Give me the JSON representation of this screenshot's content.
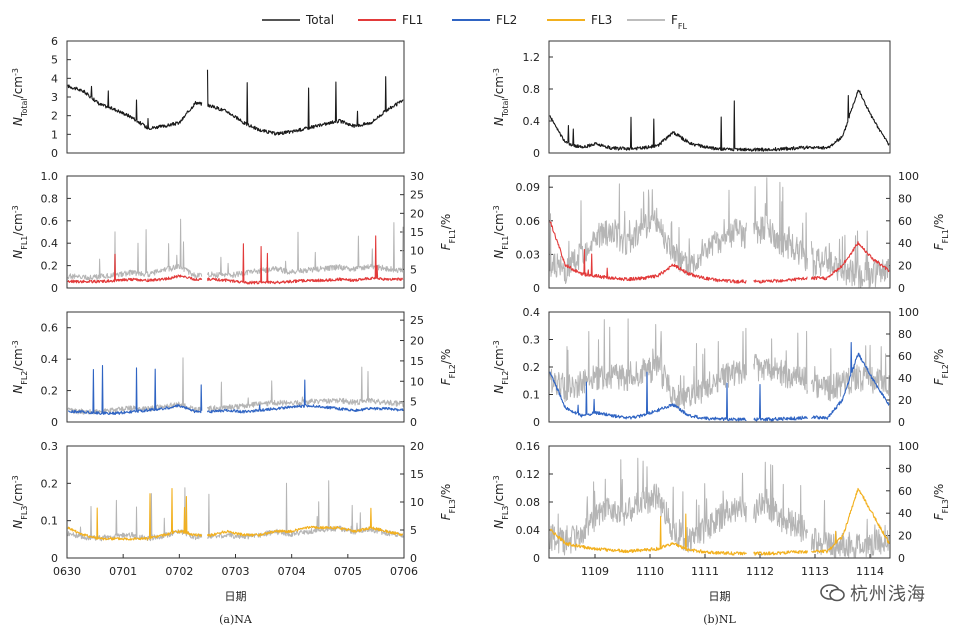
{
  "chart_data": {
    "type": "line",
    "legend": {
      "placement": "top-center",
      "items": [
        {
          "name": "Total",
          "color": "#555555"
        },
        {
          "name": "FL1",
          "color": "#e23a3a"
        },
        {
          "name": "FL2",
          "color": "#2f64c3"
        },
        {
          "name": "FL3",
          "color": "#f2b01e"
        },
        {
          "name": "F",
          "sub": "FL",
          "color": "#bdbdbd"
        }
      ]
    },
    "units": "/cm",
    "unit_exp": "-3",
    "ff_unit": "/%",
    "xlabel": "日期",
    "columns": [
      {
        "caption": "(a)NA",
        "x_ticks": [
          "0630",
          "0701",
          "0702",
          "0703",
          "0704",
          "0705",
          "0706"
        ],
        "panels": [
          {
            "ylabel_main": "N",
            "ylabel_sub": "Total",
            "ylim": [
              0,
              6
            ],
            "yticks": [
              "0",
              "1",
              "2",
              "3",
              "4",
              "5",
              "6"
            ],
            "series": [
              {
                "name": "Total",
                "color": "#1a1a1a",
                "values": [
                  3.6,
                  3.3,
                  2.6,
                  2.3,
                  1.9,
                  1.3,
                  1.4,
                  1.6,
                  2.7,
                  2.5,
                  2.2,
                  1.6,
                  1.2,
                  1.0,
                  1.1,
                  1.3,
                  1.5,
                  1.7,
                  1.4,
                  1.6,
                  2.3,
                  2.8
                ]
              }
            ]
          },
          {
            "ylabel_main": "N",
            "ylabel_sub": "FL1",
            "ylim": [
              0,
              1.0
            ],
            "yticks": [
              "0",
              "0.2",
              "0.4",
              "0.6",
              "0.8",
              "1.0"
            ],
            "ff_ylabel_main": "F",
            "ff_ylabel_sub": "FL1",
            "ff_ylim": [
              0,
              30
            ],
            "ff_yticks": [
              "0",
              "5",
              "10",
              "15",
              "20",
              "25",
              "30"
            ],
            "series": [
              {
                "name": "FFL",
                "color": "#b5b5b5",
                "values": [
                  3.0,
                  2.5,
                  2.8,
                  3.2,
                  4.0,
                  3.4,
                  4.6,
                  5.6,
                  3.0,
                  3.4,
                  3.0,
                  3.8,
                  4.4,
                  5.0,
                  4.0,
                  4.6,
                  5.0,
                  5.4,
                  4.8,
                  5.6,
                  5.0,
                  4.4
                ]
              },
              {
                "name": "FL1",
                "color": "#e23a3a",
                "values": [
                  0.05,
                  0.05,
                  0.05,
                  0.06,
                  0.07,
                  0.06,
                  0.07,
                  0.1,
                  0.07,
                  0.07,
                  0.06,
                  0.04,
                  0.04,
                  0.04,
                  0.05,
                  0.06,
                  0.06,
                  0.07,
                  0.06,
                  0.08,
                  0.07,
                  0.07
                ]
              }
            ]
          },
          {
            "ylabel_main": "N",
            "ylabel_sub": "FL2",
            "ylim": [
              0,
              0.7
            ],
            "yticks": [
              "0",
              "0.2",
              "0.4",
              "0.6"
            ],
            "ff_ylabel_main": "F",
            "ff_ylabel_sub": "FL2",
            "ff_ylim": [
              0,
              27
            ],
            "ff_yticks": [
              "0",
              "5",
              "10",
              "15",
              "20",
              "25"
            ],
            "series": [
              {
                "name": "FFL",
                "color": "#b5b5b5",
                "values": [
                  2.6,
                  2.3,
                  2.4,
                  2.8,
                  3.2,
                  3.0,
                  3.6,
                  4.2,
                  2.8,
                  3.2,
                  3.4,
                  3.8,
                  4.2,
                  4.6,
                  4.4,
                  4.8,
                  5.0,
                  5.2,
                  4.6,
                  5.0,
                  4.6,
                  4.2
                ]
              },
              {
                "name": "FL2",
                "color": "#2f64c3",
                "values": [
                  0.06,
                  0.06,
                  0.05,
                  0.05,
                  0.06,
                  0.07,
                  0.08,
                  0.1,
                  0.06,
                  0.06,
                  0.07,
                  0.06,
                  0.07,
                  0.08,
                  0.09,
                  0.1,
                  0.09,
                  0.08,
                  0.07,
                  0.08,
                  0.08,
                  0.07
                ]
              }
            ]
          },
          {
            "ylabel_main": "N",
            "ylabel_sub": "FL3",
            "ylim": [
              0,
              0.3
            ],
            "yticks": [
              "0",
              "0.1",
              "0.2",
              "0.3"
            ],
            "ff_ylabel_main": "F",
            "ff_ylabel_sub": "FL3",
            "ff_ylim": [
              0,
              20
            ],
            "ff_yticks": [
              "0",
              "5",
              "10",
              "15",
              "20"
            ],
            "series": [
              {
                "name": "FFL",
                "color": "#b5b5b5",
                "values": [
                  4.2,
                  3.6,
                  3.4,
                  3.8,
                  4.0,
                  3.4,
                  3.8,
                  4.8,
                  3.6,
                  3.8,
                  4.0,
                  3.6,
                  4.0,
                  4.6,
                  4.2,
                  4.6,
                  5.0,
                  5.2,
                  4.6,
                  5.0,
                  4.4,
                  4.0
                ]
              },
              {
                "name": "FL3",
                "color": "#f2b01e",
                "values": [
                  0.08,
                  0.06,
                  0.05,
                  0.05,
                  0.05,
                  0.05,
                  0.06,
                  0.07,
                  0.06,
                  0.06,
                  0.07,
                  0.06,
                  0.06,
                  0.07,
                  0.07,
                  0.08,
                  0.08,
                  0.08,
                  0.07,
                  0.08,
                  0.07,
                  0.06
                ]
              }
            ]
          }
        ]
      },
      {
        "caption": "(b)NL",
        "x_ticks": [
          "1109",
          "1110",
          "1111",
          "1112",
          "1113",
          "1114"
        ],
        "panels": [
          {
            "ylabel_main": "N",
            "ylabel_sub": "Total",
            "ylim": [
              0,
              1.4
            ],
            "yticks": [
              "0",
              "0.4",
              "0.8",
              "1.2"
            ],
            "series": [
              {
                "name": "Total",
                "color": "#1a1a1a",
                "values": [
                  0.45,
                  0.12,
                  0.06,
                  0.1,
                  0.05,
                  0.04,
                  0.05,
                  0.08,
                  0.25,
                  0.12,
                  0.06,
                  0.04,
                  0.03,
                  0.03,
                  0.03,
                  0.04,
                  0.05,
                  0.06,
                  0.05,
                  0.2,
                  0.8,
                  0.4,
                  0.1
                ]
              }
            ]
          },
          {
            "ylabel_main": "N",
            "ylabel_sub": "FL1",
            "ylim": [
              0,
              0.1
            ],
            "yticks": [
              "0",
              "0.03",
              "0.06",
              "0.09"
            ],
            "ff_ylabel_main": "F",
            "ff_ylabel_sub": "FL1",
            "ff_ylim": [
              0,
              100
            ],
            "ff_yticks": [
              "0",
              "20",
              "40",
              "60",
              "80",
              "100"
            ],
            "series": [
              {
                "name": "FFL",
                "color": "#b5b5b5",
                "values": [
                  20,
                  15,
                  30,
                  45,
                  50,
                  40,
                  55,
                  60,
                  30,
                  20,
                  35,
                  40,
                  50,
                  45,
                  55,
                  40,
                  35,
                  20,
                  25,
                  15,
                  10,
                  12,
                  15
                ]
              },
              {
                "name": "FL1",
                "color": "#e23a3a",
                "values": [
                  0.06,
                  0.02,
                  0.012,
                  0.01,
                  0.008,
                  0.007,
                  0.008,
                  0.01,
                  0.02,
                  0.012,
                  0.008,
                  0.006,
                  0.005,
                  0.005,
                  0.005,
                  0.006,
                  0.007,
                  0.008,
                  0.008,
                  0.02,
                  0.04,
                  0.025,
                  0.015
                ]
              }
            ]
          },
          {
            "ylabel_main": "N",
            "ylabel_sub": "FL2",
            "ylim": [
              0,
              0.4
            ],
            "yticks": [
              "0",
              "0.1",
              "0.2",
              "0.3",
              "0.4"
            ],
            "ff_ylabel_main": "F",
            "ff_ylabel_sub": "FL2",
            "ff_ylim": [
              0,
              100
            ],
            "ff_yticks": [
              "0",
              "20",
              "40",
              "60",
              "80",
              "100"
            ],
            "series": [
              {
                "name": "FFL",
                "color": "#b5b5b5",
                "values": [
                  40,
                  30,
                  35,
                  40,
                  42,
                  40,
                  45,
                  50,
                  25,
                  20,
                  30,
                  40,
                  45,
                  50,
                  48,
                  45,
                  40,
                  35,
                  30,
                  35,
                  40,
                  38,
                  35
                ]
              },
              {
                "name": "FL2",
                "color": "#2f64c3",
                "values": [
                  0.18,
                  0.05,
                  0.02,
                  0.03,
                  0.02,
                  0.01,
                  0.02,
                  0.04,
                  0.06,
                  0.02,
                  0.01,
                  0.008,
                  0.006,
                  0.006,
                  0.006,
                  0.008,
                  0.01,
                  0.015,
                  0.01,
                  0.08,
                  0.25,
                  0.15,
                  0.06
                ]
              }
            ]
          },
          {
            "ylabel_main": "N",
            "ylabel_sub": "FL3",
            "ylim": [
              0,
              0.16
            ],
            "yticks": [
              "0",
              "0.04",
              "0.08",
              "0.12",
              "0.16"
            ],
            "ff_ylabel_main": "F",
            "ff_ylabel_sub": "FL3",
            "ff_ylim": [
              0,
              100
            ],
            "ff_yticks": [
              "0",
              "20",
              "40",
              "60",
              "80",
              "100"
            ],
            "series": [
              {
                "name": "FFL",
                "color": "#b5b5b5",
                "values": [
                  18,
                  12,
                  20,
                  35,
                  45,
                  40,
                  50,
                  55,
                  25,
                  15,
                  25,
                  35,
                  45,
                  40,
                  50,
                  35,
                  30,
                  15,
                  12,
                  10,
                  10,
                  12,
                  18
                ]
              },
              {
                "name": "FL3",
                "color": "#f2b01e",
                "values": [
                  0.04,
                  0.02,
                  0.015,
                  0.012,
                  0.01,
                  0.008,
                  0.01,
                  0.012,
                  0.02,
                  0.01,
                  0.008,
                  0.006,
                  0.005,
                  0.005,
                  0.005,
                  0.006,
                  0.007,
                  0.008,
                  0.008,
                  0.03,
                  0.1,
                  0.06,
                  0.02
                ]
              }
            ]
          }
        ]
      }
    ]
  },
  "watermark": {
    "text": "杭州浅海"
  }
}
